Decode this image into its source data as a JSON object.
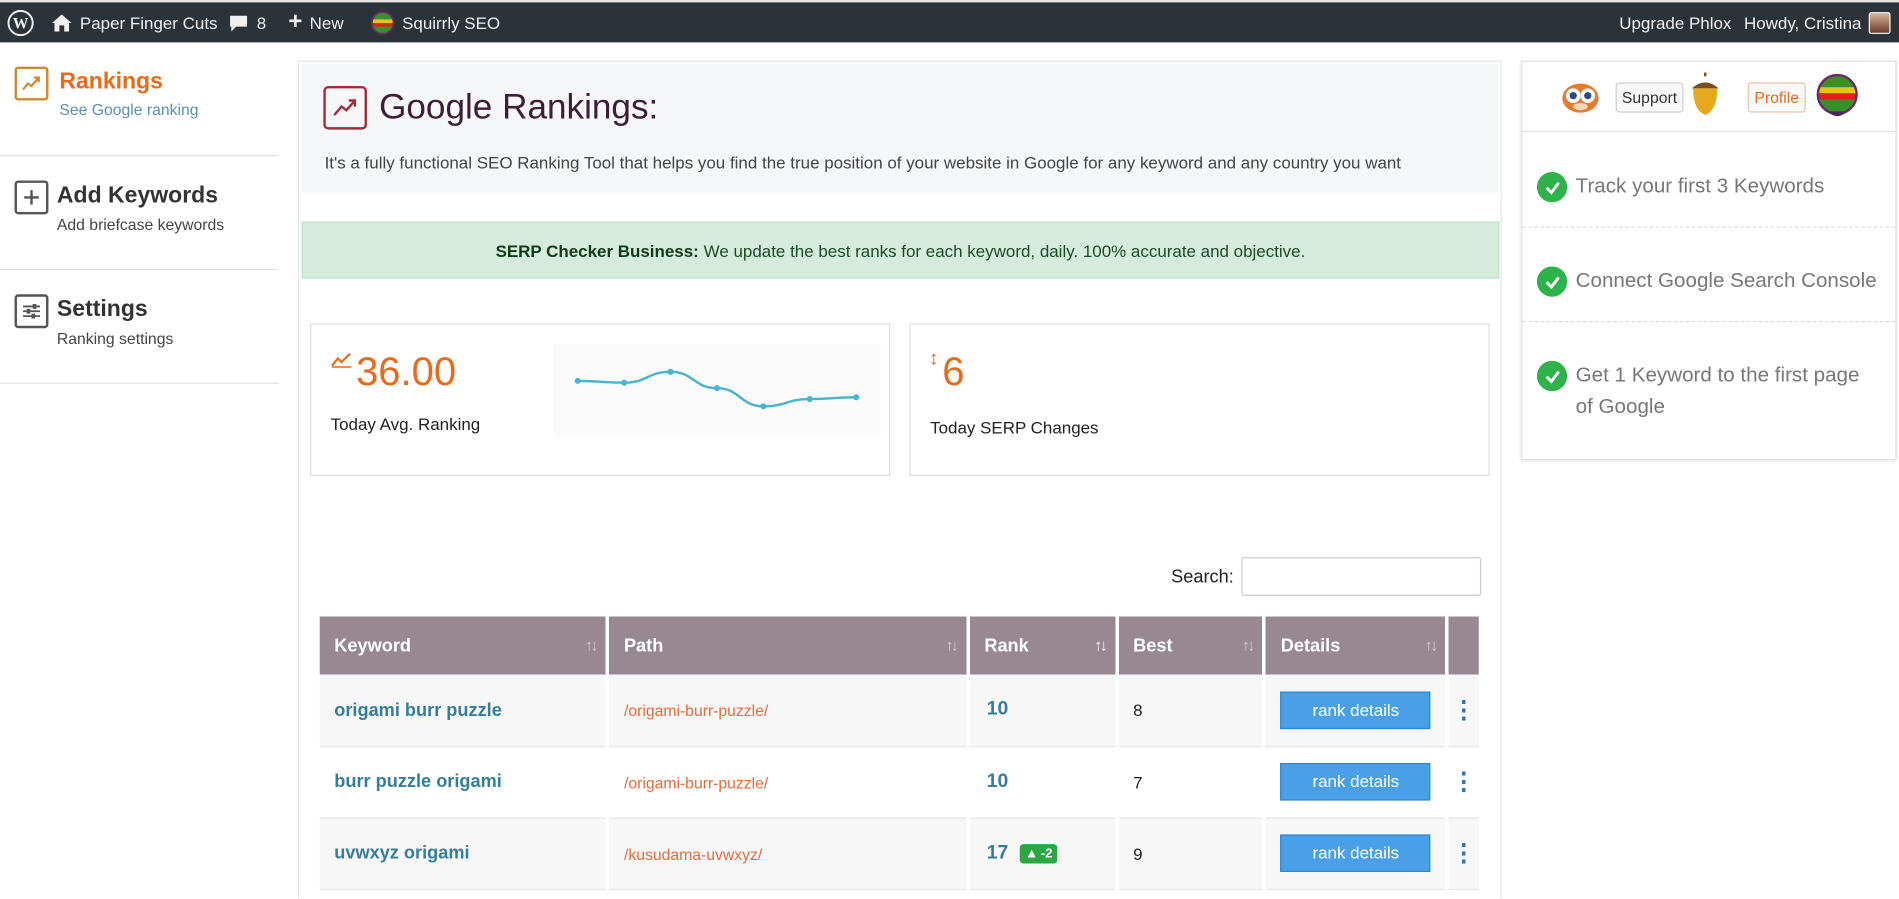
{
  "adminbar": {
    "site_name": "Paper Finger Cuts",
    "comments_count": "8",
    "new_label": "New",
    "plugin_label": "Squirrly SEO",
    "upgrade_label": "Upgrade Phlox",
    "howdy_label": "Howdy, Cristina"
  },
  "sidebar": {
    "items": [
      {
        "title": "Rankings",
        "subtitle": "See Google ranking"
      },
      {
        "title": "Add Keywords",
        "subtitle": "Add briefcase keywords"
      },
      {
        "title": "Settings",
        "subtitle": "Ranking settings"
      }
    ]
  },
  "header": {
    "title": "Google Rankings:",
    "description": "It's a fully functional SEO Ranking Tool that helps you find the true position of your website in Google for any keyword and any country you want"
  },
  "notice": {
    "bold": "SERP Checker Business:",
    "text": "We update the best ranks for each keyword, daily. 100% accurate and objective."
  },
  "stats": {
    "avg_ranking": "36.00",
    "avg_label": "Today Avg. Ranking",
    "serp_changes": "6",
    "serp_label": "Today SERP Changes"
  },
  "chart_data": {
    "type": "line",
    "title": "",
    "values": [
      50,
      48,
      60,
      42,
      22,
      30,
      32
    ],
    "ylim": [
      0,
      80
    ],
    "color": "#4bb3cc"
  },
  "search": {
    "label": "Search:",
    "value": ""
  },
  "table": {
    "columns": [
      "Keyword",
      "Path",
      "Rank",
      "Best",
      "Details"
    ],
    "rows": [
      {
        "keyword": "origami burr puzzle",
        "path": "/origami-burr-puzzle/",
        "rank": "10",
        "change": "",
        "best": "8",
        "details": "rank details"
      },
      {
        "keyword": "burr puzzle origami",
        "path": "/origami-burr-puzzle/",
        "rank": "10",
        "change": "",
        "best": "7",
        "details": "rank details"
      },
      {
        "keyword": "uvwxyz origami",
        "path": "/kusudama-uvwxyz/",
        "rank": "17",
        "change": "-2",
        "best": "9",
        "details": "rank details"
      }
    ]
  },
  "right_panel": {
    "support_label": "Support",
    "profile_label": "Profile",
    "tasks": [
      "Track your first 3 Keywords",
      "Connect Google Search Console",
      "Get 1 Keyword to the first page of Google"
    ]
  },
  "colors": {
    "accent": "#e86a1a",
    "admin_bar": "#2c3338",
    "table_header": "#978891",
    "link": "#357e9b",
    "success": "#2eb24a",
    "button": "#4a9fe6"
  }
}
